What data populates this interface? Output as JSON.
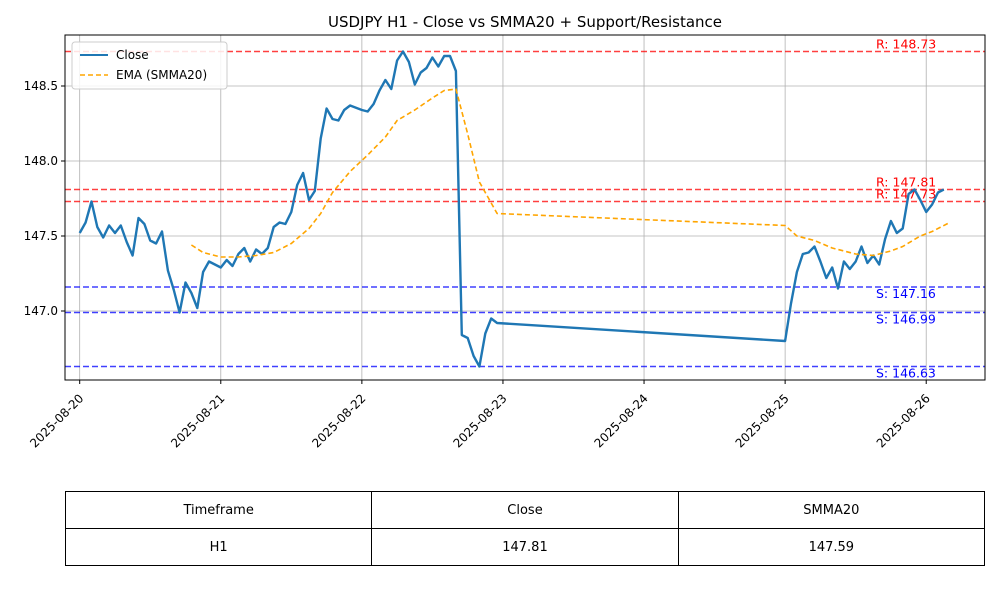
{
  "chart_data": {
    "type": "line",
    "title": "USDJPY H1 - Close vs SMMA20 + Support/Resistance",
    "ylim": [
      146.54,
      148.84
    ],
    "xlim": [
      "2025-08-19T21:30",
      "2025-08-26T10:00"
    ],
    "grid": true,
    "legend_placement": "top-left",
    "x_ticks": [
      "2025-08-20",
      "2025-08-21",
      "2025-08-22",
      "2025-08-23",
      "2025-08-24",
      "2025-08-25",
      "2025-08-26"
    ],
    "y_ticks": [
      "147.0",
      "147.5",
      "148.0",
      "148.5"
    ],
    "y_tick_values": [
      147.0,
      147.5,
      148.0,
      148.5
    ],
    "series": [
      {
        "name": "Close",
        "color": "#1f77b4",
        "style": "solid",
        "points": [
          [
            "2025-08-20T00:00",
            147.52
          ],
          [
            "2025-08-20T01:00",
            147.59
          ],
          [
            "2025-08-20T02:00",
            147.73
          ],
          [
            "2025-08-20T03:00",
            147.56
          ],
          [
            "2025-08-20T04:00",
            147.49
          ],
          [
            "2025-08-20T05:00",
            147.57
          ],
          [
            "2025-08-20T06:00",
            147.52
          ],
          [
            "2025-08-20T07:00",
            147.57
          ],
          [
            "2025-08-20T08:00",
            147.46
          ],
          [
            "2025-08-20T09:00",
            147.37
          ],
          [
            "2025-08-20T10:00",
            147.62
          ],
          [
            "2025-08-20T11:00",
            147.58
          ],
          [
            "2025-08-20T12:00",
            147.47
          ],
          [
            "2025-08-20T13:00",
            147.45
          ],
          [
            "2025-08-20T14:00",
            147.53
          ],
          [
            "2025-08-20T15:00",
            147.27
          ],
          [
            "2025-08-20T16:00",
            147.14
          ],
          [
            "2025-08-20T17:00",
            146.99
          ],
          [
            "2025-08-20T18:00",
            147.19
          ],
          [
            "2025-08-20T19:00",
            147.12
          ],
          [
            "2025-08-20T20:00",
            147.02
          ],
          [
            "2025-08-20T21:00",
            147.26
          ],
          [
            "2025-08-20T22:00",
            147.33
          ],
          [
            "2025-08-20T23:00",
            147.31
          ],
          [
            "2025-08-21T00:00",
            147.29
          ],
          [
            "2025-08-21T01:00",
            147.34
          ],
          [
            "2025-08-21T02:00",
            147.3
          ],
          [
            "2025-08-21T03:00",
            147.38
          ],
          [
            "2025-08-21T04:00",
            147.42
          ],
          [
            "2025-08-21T05:00",
            147.33
          ],
          [
            "2025-08-21T06:00",
            147.41
          ],
          [
            "2025-08-21T07:00",
            147.38
          ],
          [
            "2025-08-21T08:00",
            147.42
          ],
          [
            "2025-08-21T09:00",
            147.56
          ],
          [
            "2025-08-21T10:00",
            147.59
          ],
          [
            "2025-08-21T11:00",
            147.58
          ],
          [
            "2025-08-21T12:00",
            147.66
          ],
          [
            "2025-08-21T13:00",
            147.84
          ],
          [
            "2025-08-21T14:00",
            147.92
          ],
          [
            "2025-08-21T15:00",
            147.74
          ],
          [
            "2025-08-21T16:00",
            147.8
          ],
          [
            "2025-08-21T17:00",
            148.15
          ],
          [
            "2025-08-21T18:00",
            148.35
          ],
          [
            "2025-08-21T19:00",
            148.28
          ],
          [
            "2025-08-21T20:00",
            148.27
          ],
          [
            "2025-08-21T21:00",
            148.34
          ],
          [
            "2025-08-21T22:00",
            148.37
          ],
          [
            "2025-08-22T00:00",
            148.34
          ],
          [
            "2025-08-22T01:00",
            148.33
          ],
          [
            "2025-08-22T02:00",
            148.38
          ],
          [
            "2025-08-22T03:00",
            148.47
          ],
          [
            "2025-08-22T04:00",
            148.54
          ],
          [
            "2025-08-22T05:00",
            148.48
          ],
          [
            "2025-08-22T06:00",
            148.67
          ],
          [
            "2025-08-22T07:00",
            148.73
          ],
          [
            "2025-08-22T08:00",
            148.66
          ],
          [
            "2025-08-22T09:00",
            148.51
          ],
          [
            "2025-08-22T10:00",
            148.59
          ],
          [
            "2025-08-22T11:00",
            148.62
          ],
          [
            "2025-08-22T12:00",
            148.69
          ],
          [
            "2025-08-22T13:00",
            148.63
          ],
          [
            "2025-08-22T14:00",
            148.7
          ],
          [
            "2025-08-22T15:00",
            148.7
          ],
          [
            "2025-08-22T16:00",
            148.6
          ],
          [
            "2025-08-22T17:00",
            146.84
          ],
          [
            "2025-08-22T18:00",
            146.82
          ],
          [
            "2025-08-22T19:00",
            146.7
          ],
          [
            "2025-08-22T20:00",
            146.63
          ],
          [
            "2025-08-22T21:00",
            146.85
          ],
          [
            "2025-08-22T22:00",
            146.95
          ],
          [
            "2025-08-22T23:00",
            146.92
          ],
          [
            "2025-08-25T00:00",
            146.8
          ],
          [
            "2025-08-25T01:00",
            147.05
          ],
          [
            "2025-08-25T02:00",
            147.26
          ],
          [
            "2025-08-25T03:00",
            147.38
          ],
          [
            "2025-08-25T04:00",
            147.39
          ],
          [
            "2025-08-25T05:00",
            147.43
          ],
          [
            "2025-08-25T06:00",
            147.33
          ],
          [
            "2025-08-25T07:00",
            147.22
          ],
          [
            "2025-08-25T08:00",
            147.29
          ],
          [
            "2025-08-25T09:00",
            147.15
          ],
          [
            "2025-08-25T10:00",
            147.33
          ],
          [
            "2025-08-25T11:00",
            147.28
          ],
          [
            "2025-08-25T12:00",
            147.33
          ],
          [
            "2025-08-25T13:00",
            147.43
          ],
          [
            "2025-08-25T14:00",
            147.32
          ],
          [
            "2025-08-25T15:00",
            147.37
          ],
          [
            "2025-08-25T16:00",
            147.31
          ],
          [
            "2025-08-25T17:00",
            147.48
          ],
          [
            "2025-08-25T18:00",
            147.6
          ],
          [
            "2025-08-25T19:00",
            147.52
          ],
          [
            "2025-08-25T20:00",
            147.55
          ],
          [
            "2025-08-25T21:00",
            147.78
          ],
          [
            "2025-08-25T22:00",
            147.81
          ],
          [
            "2025-08-25T23:00",
            147.74
          ],
          [
            "2025-08-26T00:00",
            147.66
          ],
          [
            "2025-08-26T01:00",
            147.71
          ],
          [
            "2025-08-26T02:00",
            147.79
          ],
          [
            "2025-08-26T03:00",
            147.81
          ]
        ]
      },
      {
        "name": "EMA (SMMA20)",
        "color": "#ffa500",
        "style": "dashed",
        "points": [
          [
            "2025-08-20T19:00",
            147.44
          ],
          [
            "2025-08-20T21:00",
            147.39
          ],
          [
            "2025-08-21T00:00",
            147.36
          ],
          [
            "2025-08-21T03:00",
            147.36
          ],
          [
            "2025-08-21T06:00",
            147.37
          ],
          [
            "2025-08-21T09:00",
            147.39
          ],
          [
            "2025-08-21T12:00",
            147.45
          ],
          [
            "2025-08-21T15:00",
            147.55
          ],
          [
            "2025-08-21T17:00",
            147.65
          ],
          [
            "2025-08-21T19:00",
            147.79
          ],
          [
            "2025-08-21T22:00",
            147.93
          ],
          [
            "2025-08-22T01:00",
            148.04
          ],
          [
            "2025-08-22T04:00",
            148.16
          ],
          [
            "2025-08-22T06:00",
            148.27
          ],
          [
            "2025-08-22T09:00",
            148.34
          ],
          [
            "2025-08-22T12:00",
            148.42
          ],
          [
            "2025-08-22T14:00",
            148.47
          ],
          [
            "2025-08-22T16:00",
            148.48
          ],
          [
            "2025-08-22T18:00",
            148.18
          ],
          [
            "2025-08-22T20:00",
            147.86
          ],
          [
            "2025-08-22T23:00",
            147.65
          ],
          [
            "2025-08-25T00:00",
            147.57
          ],
          [
            "2025-08-25T02:00",
            147.5
          ],
          [
            "2025-08-25T05:00",
            147.47
          ],
          [
            "2025-08-25T08:00",
            147.42
          ],
          [
            "2025-08-25T12:00",
            147.38
          ],
          [
            "2025-08-25T15:00",
            147.37
          ],
          [
            "2025-08-25T18:00",
            147.4
          ],
          [
            "2025-08-25T20:00",
            147.43
          ],
          [
            "2025-08-25T23:00",
            147.5
          ],
          [
            "2025-08-26T01:00",
            147.53
          ],
          [
            "2025-08-26T04:00",
            147.59
          ]
        ]
      }
    ],
    "levels": [
      {
        "kind": "resistance",
        "value": 148.73,
        "label": "R: 148.73",
        "color": "#ff0000"
      },
      {
        "kind": "resistance",
        "value": 147.81,
        "label": "R: 147.81",
        "color": "#ff0000"
      },
      {
        "kind": "resistance",
        "value": 147.73,
        "label": "R: 147.73",
        "color": "#ff0000"
      },
      {
        "kind": "support",
        "value": 147.16,
        "label": "S: 147.16",
        "color": "#0000ff"
      },
      {
        "kind": "support",
        "value": 146.99,
        "label": "S: 146.99",
        "color": "#0000ff"
      },
      {
        "kind": "support",
        "value": 146.63,
        "label": "S: 146.63",
        "color": "#0000ff"
      }
    ]
  },
  "table": {
    "headers": [
      "Timeframe",
      "Close",
      "SMMA20"
    ],
    "rows": [
      [
        "H1",
        "147.81",
        "147.59"
      ]
    ]
  }
}
